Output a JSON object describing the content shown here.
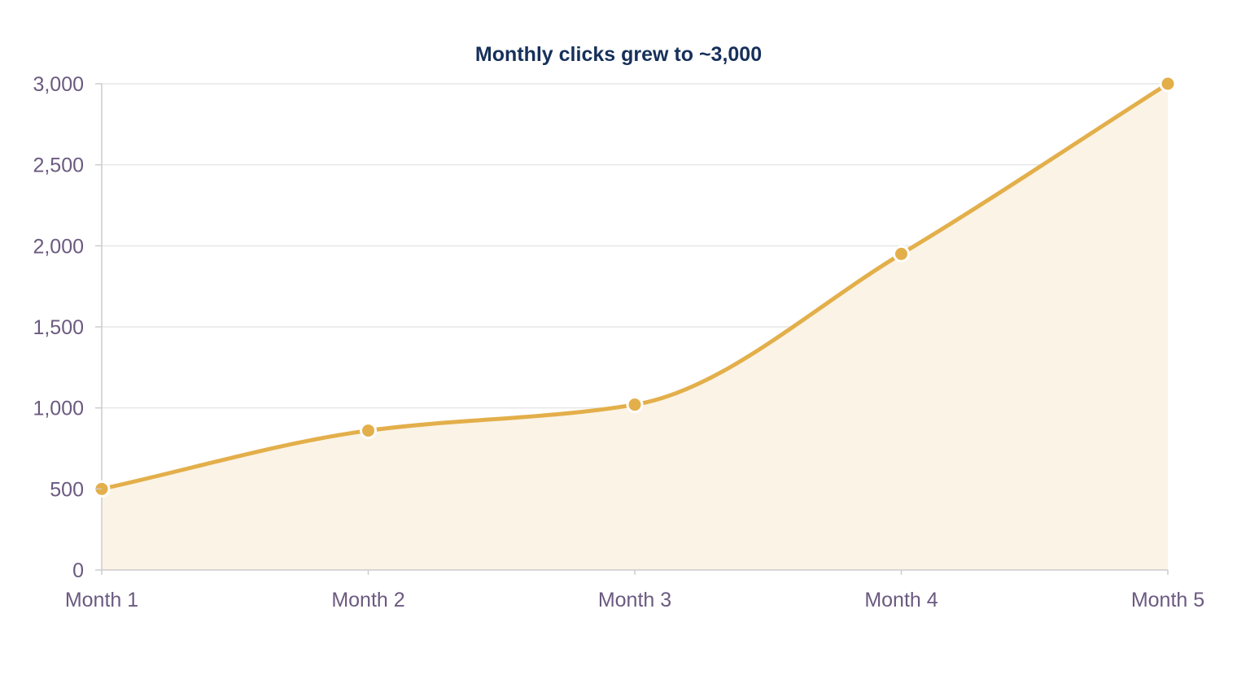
{
  "chart_data": {
    "type": "area",
    "title": "Monthly clicks grew to ~3,000",
    "xlabel": "",
    "ylabel": "",
    "categories": [
      "Month 1",
      "Month 2",
      "Month 3",
      "Month 4",
      "Month 5"
    ],
    "series": [
      {
        "values": [
          500,
          860,
          1020,
          1950,
          3000
        ]
      }
    ],
    "ylim": [
      0,
      3000
    ],
    "y_ticks": [
      0,
      500,
      1000,
      1500,
      2000,
      2500,
      3000
    ],
    "y_tick_labels": [
      "0",
      "500",
      "1,000",
      "1,500",
      "2,000",
      "2,500",
      "3,000"
    ],
    "grid": true,
    "legend": "none",
    "colors": {
      "line": "#e3af4a",
      "fill": "#fbf3e6",
      "grid": "#e6e6e6",
      "axis": "#cccccc",
      "tick_text": "#6b5a80",
      "title_text": "#16305a",
      "marker_stroke": "#ffffff"
    }
  }
}
